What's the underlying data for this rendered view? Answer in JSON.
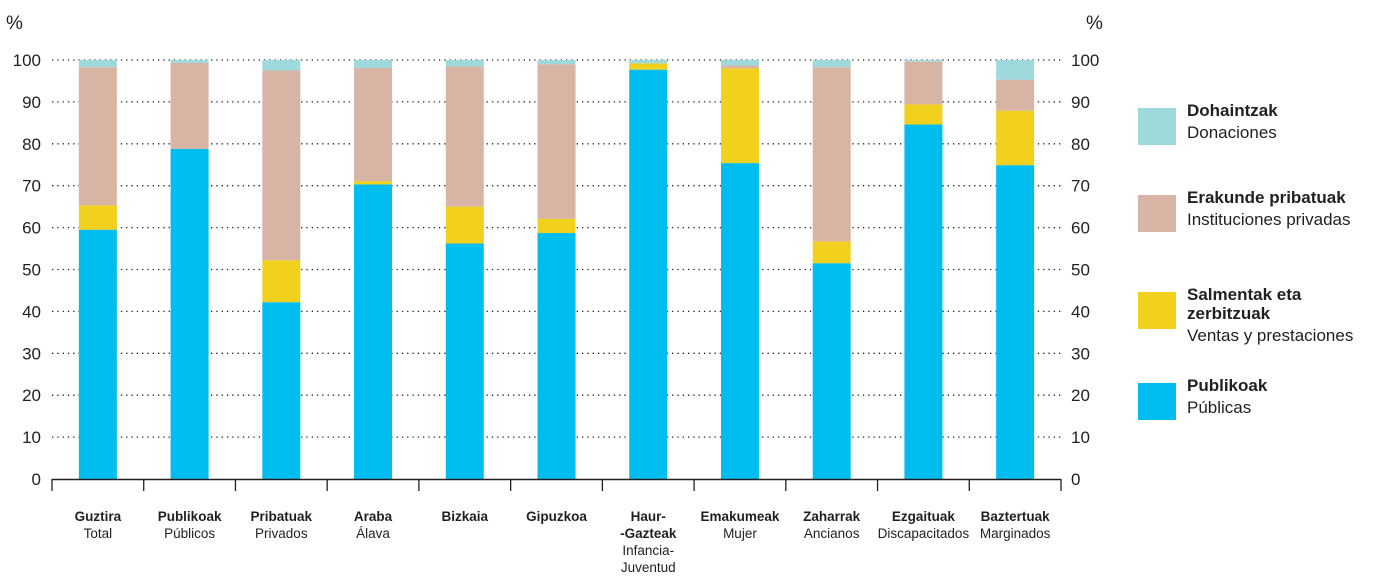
{
  "chart_data": {
    "type": "bar",
    "stacked": true,
    "unit_left": "%",
    "unit_right": "%",
    "ylim": [
      0,
      100
    ],
    "yticks": [
      "0",
      "10",
      "20",
      "30",
      "40",
      "50",
      "60",
      "70",
      "80",
      "90",
      "100"
    ],
    "grid": "dotted",
    "legend_position": "right",
    "categories": [
      {
        "lines": [
          "Guztira"
        ],
        "sub": [
          "Total"
        ]
      },
      {
        "lines": [
          "Publikoak"
        ],
        "sub": [
          "Públicos"
        ]
      },
      {
        "lines": [
          "Pribatuak"
        ],
        "sub": [
          "Privados"
        ]
      },
      {
        "lines": [
          "Araba"
        ],
        "sub": [
          "Álava"
        ]
      },
      {
        "lines": [
          "Bizkaia"
        ],
        "sub": []
      },
      {
        "lines": [
          "Gipuzkoa"
        ],
        "sub": []
      },
      {
        "lines": [
          "Haur-",
          "-Gazteak"
        ],
        "sub": [
          "Infancia-",
          "Juventud"
        ]
      },
      {
        "lines": [
          "Emakumeak"
        ],
        "sub": [
          "Mujer"
        ]
      },
      {
        "lines": [
          "Zaharrak"
        ],
        "sub": [
          "Ancianos"
        ]
      },
      {
        "lines": [
          "Ezgaituak"
        ],
        "sub": [
          "Discapacitados"
        ]
      },
      {
        "lines": [
          "Baztertuak"
        ],
        "sub": [
          "Marginados"
        ]
      }
    ],
    "series": [
      {
        "name": "Publikoak",
        "subname": "Públicas",
        "color": "#00bdef",
        "values": [
          59.5,
          78.8,
          42.2,
          70.3,
          56.2,
          58.7,
          97.7,
          75.4,
          51.5,
          84.6,
          74.9
        ]
      },
      {
        "name": "Salmentak eta zerbitzuak",
        "subname": "Ventas y prestaciones",
        "color": "#f2d01e",
        "values": [
          5.8,
          0,
          10.0,
          0.8,
          8.8,
          3.4,
          1.5,
          22.6,
          5.2,
          4.8,
          13.0
        ]
      },
      {
        "name": "Erakunde pribatuak",
        "subname": "Instituciones privadas",
        "color": "#d8b4a4",
        "values": [
          33.0,
          20.5,
          45.3,
          27.0,
          33.5,
          36.9,
          0,
          0.7,
          41.6,
          10.2,
          7.4
        ]
      },
      {
        "name": "Dohaintzak",
        "subname": "Donaciones",
        "color": "#9ed9dc",
        "values": [
          1.7,
          0.7,
          2.5,
          1.9,
          1.5,
          1.0,
          0.8,
          1.3,
          1.7,
          0.4,
          4.7
        ]
      }
    ]
  }
}
